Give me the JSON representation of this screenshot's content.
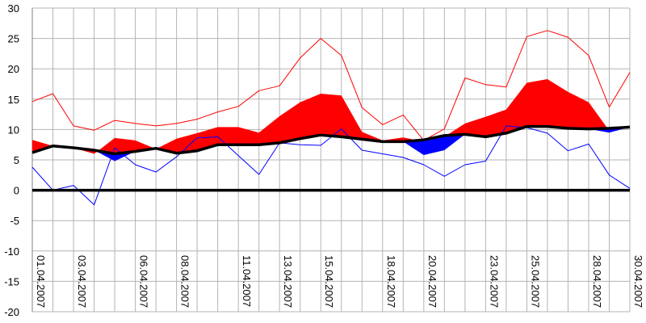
{
  "chart_data": {
    "type": "line",
    "title": "",
    "xlabel": "",
    "ylabel": "",
    "ylim": [
      -20,
      30
    ],
    "yticks": [
      "30",
      "25",
      "20",
      "15",
      "10",
      "5",
      "0",
      "-5",
      "-10",
      "-15",
      "-20"
    ],
    "grid": true,
    "legend": "none",
    "x": [
      "01.04.2007",
      "02.04.2007",
      "03.04.2007",
      "04.04.2007",
      "05.04.2007",
      "06.04.2007",
      "07.04.2007",
      "08.04.2007",
      "09.04.2007",
      "10.04.2007",
      "11.04.2007",
      "12.04.2007",
      "13.04.2007",
      "14.04.2007",
      "15.04.2007",
      "16.04.2007",
      "17.04.2007",
      "18.04.2007",
      "19.04.2007",
      "20.04.2007",
      "21.04.2007",
      "22.04.2007",
      "23.04.2007",
      "24.04.2007",
      "25.04.2007",
      "26.04.2007",
      "27.04.2007",
      "28.04.2007",
      "29.04.2007",
      "30.04.2007"
    ],
    "xtick_labels": [
      "01.04.2007",
      "03.04.2007",
      "06.04.2007",
      "08.04.2007",
      "11.04.2007",
      "13.04.2007",
      "15.04.2007",
      "18.04.2007",
      "20.04.2007",
      "23.04.2007",
      "25.04.2007",
      "28.04.2007",
      "30.04.2007"
    ],
    "series": [
      {
        "color": "#ff0000",
        "style": "line",
        "values": [
          14.6,
          15.9,
          10.6,
          9.9,
          11.5,
          11.0,
          10.6,
          11.0,
          11.7,
          12.9,
          13.8,
          16.4,
          17.2,
          21.8,
          25.0,
          22.2,
          13.6,
          10.8,
          12.4,
          8.2,
          10.1,
          18.5,
          17.4,
          17.0,
          25.3,
          26.3,
          25.2,
          22.2,
          13.7,
          19.4
        ]
      },
      {
        "color": "#0000ff",
        "style": "line",
        "values": [
          3.8,
          0.0,
          0.8,
          -2.4,
          7.0,
          4.2,
          3.0,
          5.5,
          8.6,
          8.8,
          5.7,
          2.6,
          7.8,
          7.5,
          7.4,
          10.1,
          6.6,
          6.0,
          5.4,
          4.2,
          2.3,
          4.2,
          4.8,
          10.6,
          10.3,
          9.4,
          6.5,
          7.6,
          2.5,
          0.3
        ]
      },
      {
        "color": "#ff0000",
        "style": "area",
        "values": [
          8.3,
          7.3,
          7.0,
          6.0,
          8.6,
          8.2,
          6.8,
          8.5,
          9.4,
          10.4,
          10.4,
          9.5,
          12.2,
          14.5,
          15.9,
          15.6,
          9.6,
          8.2,
          8.7,
          8.0,
          8.8,
          11.0,
          12.1,
          13.3,
          17.7,
          18.3,
          16.2,
          14.5,
          9.8,
          10.5
        ]
      },
      {
        "color": "#000000",
        "style": "line",
        "values": [
          6.2,
          7.3,
          7.0,
          6.6,
          6.0,
          6.4,
          6.9,
          6.1,
          6.5,
          7.5,
          7.5,
          7.5,
          7.8,
          8.5,
          9.1,
          8.8,
          8.4,
          8.0,
          8.0,
          8.3,
          9.0,
          9.2,
          8.8,
          9.4,
          10.5,
          10.5,
          10.2,
          10.1,
          10.2,
          10.4
        ]
      },
      {
        "color": "#0000ff",
        "style": "area",
        "values": [
          6.2,
          7.3,
          7.0,
          6.6,
          4.8,
          6.4,
          6.9,
          6.1,
          6.5,
          7.5,
          7.5,
          7.5,
          7.8,
          8.5,
          9.1,
          8.8,
          8.4,
          8.0,
          8.0,
          5.8,
          6.6,
          9.2,
          8.8,
          9.4,
          10.5,
          10.5,
          10.2,
          10.1,
          9.5,
          10.4
        ]
      }
    ]
  }
}
